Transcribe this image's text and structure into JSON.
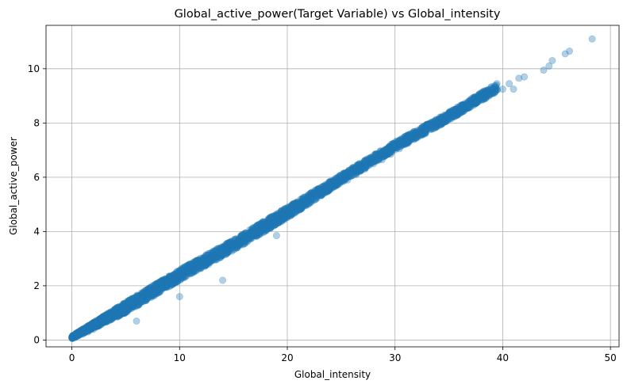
{
  "chart_data": {
    "type": "scatter",
    "title": "Global_active_power(Target Variable) vs Global_intensity",
    "xlabel": "Global_intensity",
    "ylabel": "Global_active_power",
    "xlim": [
      -2.4,
      50.8
    ],
    "ylim": [
      -0.25,
      11.6
    ],
    "xticks": [
      0,
      10,
      20,
      30,
      40,
      50
    ],
    "yticks": [
      0,
      2,
      4,
      6,
      8,
      10
    ],
    "grid": true,
    "point_color": "#1f77b4",
    "point_alpha": 0.35,
    "trend": {
      "description": "dense band of points; Global_active_power rises roughly linearly with Global_intensity",
      "band": [
        {
          "x": 0.0,
          "y_low": 0.05,
          "y_high": 0.15
        },
        {
          "x": 5.0,
          "y_low": 1.0,
          "y_high": 1.4
        },
        {
          "x": 10.0,
          "y_low": 2.2,
          "y_high": 2.6
        },
        {
          "x": 15.0,
          "y_low": 3.3,
          "y_high": 3.7
        },
        {
          "x": 20.0,
          "y_low": 4.5,
          "y_high": 4.9
        },
        {
          "x": 25.0,
          "y_low": 5.8,
          "y_high": 6.1
        },
        {
          "x": 30.0,
          "y_low": 7.0,
          "y_high": 7.3
        },
        {
          "x": 35.0,
          "y_low": 8.1,
          "y_high": 8.4
        },
        {
          "x": 40.0,
          "y_low": 9.3,
          "y_high": 9.6
        }
      ]
    },
    "series": [
      {
        "points": [
          [
            0.1,
            0.08
          ],
          [
            0.3,
            0.1
          ],
          [
            0.6,
            0.16
          ],
          [
            1.0,
            0.22
          ],
          [
            1.5,
            0.3
          ],
          [
            2.0,
            0.4
          ],
          [
            2.6,
            0.55
          ],
          [
            3.2,
            0.7
          ],
          [
            4.0,
            0.9
          ],
          [
            4.8,
            1.1
          ],
          [
            5.6,
            1.3
          ],
          [
            6.0,
            0.7
          ],
          [
            6.4,
            1.5
          ],
          [
            7.2,
            1.65
          ],
          [
            8.0,
            1.85
          ],
          [
            8.8,
            2.0
          ],
          [
            9.6,
            2.25
          ],
          [
            10.0,
            1.6
          ],
          [
            10.4,
            2.4
          ],
          [
            11.2,
            2.55
          ],
          [
            12.0,
            2.75
          ],
          [
            12.8,
            2.95
          ],
          [
            13.6,
            3.1
          ],
          [
            14.0,
            2.2
          ],
          [
            14.4,
            3.3
          ],
          [
            15.2,
            3.45
          ],
          [
            16.0,
            3.65
          ],
          [
            16.8,
            3.85
          ],
          [
            17.6,
            4.0
          ],
          [
            18.4,
            4.2
          ],
          [
            19.2,
            4.4
          ],
          [
            19.0,
            3.85
          ],
          [
            20.0,
            4.6
          ],
          [
            20.8,
            4.8
          ],
          [
            21.6,
            4.95
          ],
          [
            22.4,
            5.15
          ],
          [
            23.2,
            5.35
          ],
          [
            24.0,
            5.55
          ],
          [
            24.8,
            5.75
          ],
          [
            25.6,
            5.9
          ],
          [
            26.4,
            6.1
          ],
          [
            27.2,
            6.3
          ],
          [
            28.0,
            6.5
          ],
          [
            28.8,
            6.65
          ],
          [
            29.6,
            6.85
          ],
          [
            30.4,
            7.05
          ],
          [
            31.2,
            7.25
          ],
          [
            32.0,
            7.45
          ],
          [
            32.8,
            7.6
          ],
          [
            33.6,
            7.8
          ],
          [
            34.4,
            8.0
          ],
          [
            35.2,
            8.2
          ],
          [
            36.0,
            8.35
          ],
          [
            36.8,
            8.55
          ],
          [
            37.6,
            8.75
          ],
          [
            38.4,
            8.9
          ],
          [
            39.2,
            9.1
          ],
          [
            40.0,
            9.25
          ],
          [
            40.6,
            9.45
          ],
          [
            41.0,
            9.25
          ],
          [
            41.5,
            9.65
          ],
          [
            42.0,
            9.7
          ],
          [
            43.8,
            9.95
          ],
          [
            44.3,
            10.1
          ],
          [
            44.6,
            10.3
          ],
          [
            45.8,
            10.55
          ],
          [
            46.2,
            10.65
          ],
          [
            48.3,
            11.1
          ]
        ]
      }
    ]
  }
}
